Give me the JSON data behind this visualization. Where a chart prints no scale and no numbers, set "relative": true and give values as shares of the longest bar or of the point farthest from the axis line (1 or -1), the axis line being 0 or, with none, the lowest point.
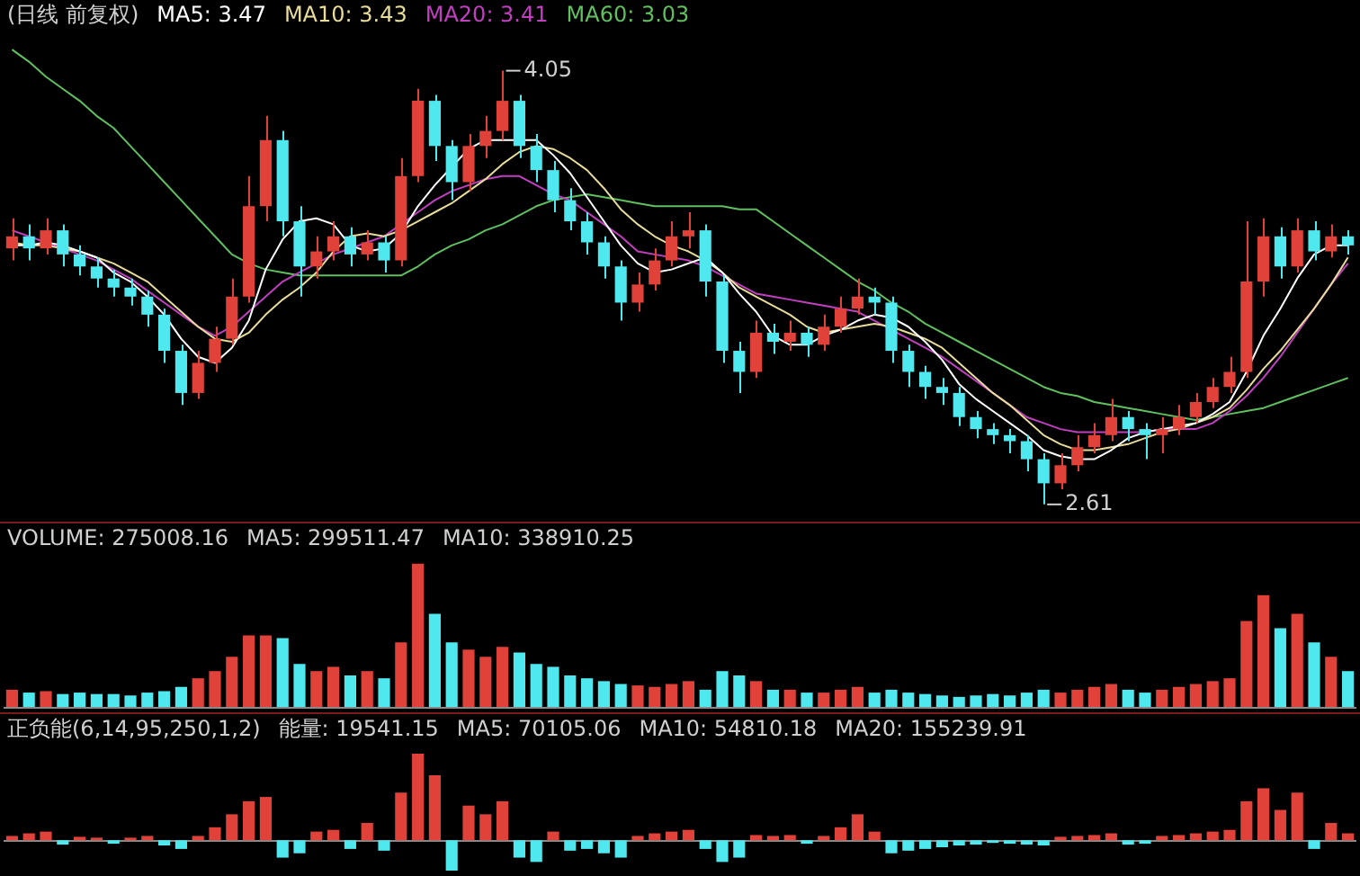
{
  "chart_data": [
    {
      "type": "candlestick",
      "title": "(日线 前复权)",
      "legend": "top left",
      "categories": [
        null,
        null,
        null,
        null,
        null,
        null,
        null,
        null,
        null,
        null,
        null,
        null,
        null,
        null,
        null,
        null,
        null,
        null,
        null,
        null,
        null,
        null,
        null,
        null,
        null,
        null,
        null,
        null,
        null,
        null,
        null,
        null,
        null,
        null,
        null,
        null,
        null,
        null,
        null,
        null,
        null,
        null,
        null,
        null,
        null,
        null,
        null,
        null,
        null,
        null,
        null,
        null,
        null,
        null,
        null,
        null,
        null,
        null,
        null,
        null,
        null,
        null,
        null,
        null,
        null,
        null,
        null,
        null,
        null,
        null,
        null,
        null,
        null,
        null,
        null,
        null,
        null,
        null,
        null,
        null
      ],
      "ohlc": [
        [
          3.46,
          3.56,
          3.42,
          3.5
        ],
        [
          3.5,
          3.54,
          3.42,
          3.46
        ],
        [
          3.46,
          3.56,
          3.44,
          3.52
        ],
        [
          3.52,
          3.54,
          3.4,
          3.44
        ],
        [
          3.44,
          3.47,
          3.37,
          3.4
        ],
        [
          3.4,
          3.43,
          3.33,
          3.36
        ],
        [
          3.36,
          3.39,
          3.3,
          3.33
        ],
        [
          3.33,
          3.36,
          3.27,
          3.3
        ],
        [
          3.3,
          3.32,
          3.2,
          3.24
        ],
        [
          3.24,
          3.26,
          3.08,
          3.12
        ],
        [
          3.12,
          3.14,
          2.94,
          2.98
        ],
        [
          2.98,
          3.12,
          2.96,
          3.08
        ],
        [
          3.08,
          3.2,
          3.05,
          3.16
        ],
        [
          3.16,
          3.36,
          3.14,
          3.3
        ],
        [
          3.3,
          3.7,
          3.28,
          3.6
        ],
        [
          3.6,
          3.9,
          3.55,
          3.82
        ],
        [
          3.82,
          3.85,
          3.5,
          3.55
        ],
        [
          3.55,
          3.6,
          3.3,
          3.4
        ],
        [
          3.4,
          3.5,
          3.36,
          3.45
        ],
        [
          3.45,
          3.55,
          3.42,
          3.5
        ],
        [
          3.5,
          3.53,
          3.4,
          3.44
        ],
        [
          3.44,
          3.52,
          3.42,
          3.48
        ],
        [
          3.48,
          3.5,
          3.38,
          3.42
        ],
        [
          3.42,
          3.76,
          3.4,
          3.7
        ],
        [
          3.7,
          3.99,
          3.68,
          3.95
        ],
        [
          3.95,
          3.97,
          3.75,
          3.8
        ],
        [
          3.8,
          3.82,
          3.62,
          3.68
        ],
        [
          3.68,
          3.84,
          3.65,
          3.8
        ],
        [
          3.8,
          3.9,
          3.76,
          3.85
        ],
        [
          3.85,
          4.05,
          3.82,
          3.95
        ],
        [
          3.95,
          3.97,
          3.76,
          3.8
        ],
        [
          3.8,
          3.84,
          3.68,
          3.72
        ],
        [
          3.72,
          3.75,
          3.58,
          3.62
        ],
        [
          3.62,
          3.66,
          3.52,
          3.55
        ],
        [
          3.55,
          3.58,
          3.44,
          3.48
        ],
        [
          3.48,
          3.5,
          3.36,
          3.4
        ],
        [
          3.4,
          3.42,
          3.22,
          3.28
        ],
        [
          3.28,
          3.38,
          3.25,
          3.34
        ],
        [
          3.34,
          3.46,
          3.32,
          3.42
        ],
        [
          3.42,
          3.55,
          3.4,
          3.5
        ],
        [
          3.5,
          3.58,
          3.46,
          3.52
        ],
        [
          3.52,
          3.54,
          3.3,
          3.35
        ],
        [
          3.35,
          3.37,
          3.08,
          3.12
        ],
        [
          3.12,
          3.15,
          2.98,
          3.05
        ],
        [
          3.05,
          3.22,
          3.03,
          3.18
        ],
        [
          3.18,
          3.21,
          3.11,
          3.15
        ],
        [
          3.15,
          3.22,
          3.12,
          3.18
        ],
        [
          3.18,
          3.2,
          3.1,
          3.14
        ],
        [
          3.14,
          3.24,
          3.12,
          3.2
        ],
        [
          3.2,
          3.3,
          3.18,
          3.26
        ],
        [
          3.26,
          3.36,
          3.24,
          3.3
        ],
        [
          3.3,
          3.33,
          3.24,
          3.28
        ],
        [
          3.28,
          3.3,
          3.08,
          3.12
        ],
        [
          3.12,
          3.14,
          3.0,
          3.05
        ],
        [
          3.05,
          3.07,
          2.96,
          3.0
        ],
        [
          3.0,
          3.03,
          2.94,
          2.98
        ],
        [
          2.98,
          3.0,
          2.87,
          2.9
        ],
        [
          2.9,
          2.92,
          2.83,
          2.86
        ],
        [
          2.86,
          2.88,
          2.81,
          2.84
        ],
        [
          2.84,
          2.86,
          2.78,
          2.82
        ],
        [
          2.82,
          2.84,
          2.72,
          2.76
        ],
        [
          2.76,
          2.78,
          2.61,
          2.68
        ],
        [
          2.68,
          2.78,
          2.66,
          2.74
        ],
        [
          2.74,
          2.84,
          2.72,
          2.8
        ],
        [
          2.8,
          2.88,
          2.78,
          2.84
        ],
        [
          2.84,
          2.96,
          2.82,
          2.9
        ],
        [
          2.9,
          2.92,
          2.82,
          2.86
        ],
        [
          2.86,
          2.88,
          2.76,
          2.84
        ],
        [
          2.84,
          2.9,
          2.78,
          2.86
        ],
        [
          2.86,
          2.94,
          2.84,
          2.9
        ],
        [
          2.9,
          2.98,
          2.88,
          2.95
        ],
        [
          2.95,
          3.03,
          2.93,
          3.0
        ],
        [
          3.0,
          3.1,
          2.98,
          3.05
        ],
        [
          3.05,
          3.55,
          3.03,
          3.35
        ],
        [
          3.35,
          3.56,
          3.3,
          3.5
        ],
        [
          3.5,
          3.53,
          3.36,
          3.4
        ],
        [
          3.4,
          3.56,
          3.38,
          3.52
        ],
        [
          3.52,
          3.55,
          3.42,
          3.45
        ],
        [
          3.45,
          3.54,
          3.43,
          3.5
        ],
        [
          3.5,
          3.52,
          3.44,
          3.47
        ]
      ],
      "colors": [
        "#e0423a",
        "#4ee8ee",
        "#e0423a",
        "#4ee8ee",
        "#4ee8ee",
        "#4ee8ee",
        "#4ee8ee",
        "#4ee8ee",
        "#4ee8ee",
        "#4ee8ee",
        "#4ee8ee",
        "#e0423a",
        "#e0423a",
        "#e0423a",
        "#e0423a",
        "#e0423a",
        "#4ee8ee",
        "#4ee8ee",
        "#e0423a",
        "#e0423a",
        "#4ee8ee",
        "#e0423a",
        "#4ee8ee",
        "#e0423a",
        "#e0423a",
        "#4ee8ee",
        "#4ee8ee",
        "#e0423a",
        "#e0423a",
        "#e0423a",
        "#4ee8ee",
        "#4ee8ee",
        "#4ee8ee",
        "#4ee8ee",
        "#4ee8ee",
        "#4ee8ee",
        "#4ee8ee",
        "#e0423a",
        "#e0423a",
        "#e0423a",
        "#e0423a",
        "#4ee8ee",
        "#4ee8ee",
        "#4ee8ee",
        "#e0423a",
        "#4ee8ee",
        "#e0423a",
        "#4ee8ee",
        "#e0423a",
        "#e0423a",
        "#e0423a",
        "#4ee8ee",
        "#4ee8ee",
        "#4ee8ee",
        "#4ee8ee",
        "#4ee8ee",
        "#4ee8ee",
        "#4ee8ee",
        "#4ee8ee",
        "#4ee8ee",
        "#4ee8ee",
        "#4ee8ee",
        "#e0423a",
        "#e0423a",
        "#e0423a",
        "#e0423a",
        "#4ee8ee",
        "#4ee8ee",
        "#e0423a",
        "#e0423a",
        "#e0423a",
        "#e0423a",
        "#e0423a",
        "#e0423a",
        "#e0423a",
        "#4ee8ee",
        "#e0423a",
        "#4ee8ee",
        "#e0423a",
        "#4ee8ee"
      ],
      "series": [
        {
          "type": "line",
          "name": "MA5: 3.47",
          "color": "#ffffff",
          "values": [
            3.47,
            3.47,
            3.48,
            3.47,
            3.45,
            3.43,
            3.38,
            3.35,
            3.3,
            3.24,
            3.16,
            3.1,
            3.08,
            3.13,
            3.22,
            3.39,
            3.49,
            3.55,
            3.56,
            3.54,
            3.47,
            3.45,
            3.46,
            3.51,
            3.6,
            3.67,
            3.73,
            3.79,
            3.82,
            3.82,
            3.82,
            3.82,
            3.77,
            3.71,
            3.63,
            3.55,
            3.47,
            3.41,
            3.38,
            3.39,
            3.41,
            3.43,
            3.38,
            3.31,
            3.25,
            3.17,
            3.14,
            3.14,
            3.17,
            3.19,
            3.22,
            3.24,
            3.23,
            3.2,
            3.15,
            3.09,
            3.01,
            2.96,
            2.92,
            2.88,
            2.84,
            2.79,
            2.77,
            2.76,
            2.76,
            2.79,
            2.83,
            2.85,
            2.86,
            2.87,
            2.88,
            2.91,
            2.95,
            3.05,
            3.17,
            3.26,
            3.36,
            3.44,
            3.47,
            3.47
          ]
        },
        {
          "type": "line",
          "name": "MA10: 3.43",
          "color": "#e8dc9a",
          "values": [
            3.48,
            3.47,
            3.47,
            3.46,
            3.45,
            3.43,
            3.41,
            3.38,
            3.35,
            3.3,
            3.25,
            3.2,
            3.16,
            3.15,
            3.18,
            3.24,
            3.29,
            3.33,
            3.38,
            3.45,
            3.5,
            3.51,
            3.5,
            3.52,
            3.55,
            3.58,
            3.61,
            3.65,
            3.69,
            3.74,
            3.78,
            3.8,
            3.79,
            3.76,
            3.72,
            3.66,
            3.59,
            3.54,
            3.5,
            3.47,
            3.45,
            3.42,
            3.38,
            3.33,
            3.3,
            3.27,
            3.24,
            3.2,
            3.18,
            3.19,
            3.2,
            3.21,
            3.2,
            3.18,
            3.16,
            3.13,
            3.08,
            3.03,
            2.98,
            2.94,
            2.89,
            2.84,
            2.81,
            2.79,
            2.79,
            2.8,
            2.81,
            2.83,
            2.85,
            2.86,
            2.88,
            2.9,
            2.93,
            2.99,
            3.06,
            3.12,
            3.19,
            3.26,
            3.34,
            3.43
          ]
        },
        {
          "type": "line",
          "name": "MA20: 3.41",
          "color": "#c040c0",
          "values": [
            3.52,
            3.5,
            3.48,
            3.46,
            3.44,
            3.42,
            3.39,
            3.36,
            3.32,
            3.28,
            3.24,
            3.2,
            3.17,
            3.2,
            3.25,
            3.3,
            3.35,
            3.38,
            3.41,
            3.44,
            3.46,
            3.48,
            3.5,
            3.54,
            3.58,
            3.62,
            3.65,
            3.67,
            3.69,
            3.7,
            3.7,
            3.67,
            3.64,
            3.62,
            3.58,
            3.54,
            3.5,
            3.45,
            3.44,
            3.43,
            3.42,
            3.4,
            3.37,
            3.34,
            3.31,
            3.3,
            3.29,
            3.28,
            3.27,
            3.26,
            3.25,
            3.22,
            3.19,
            3.16,
            3.13,
            3.1,
            3.06,
            3.02,
            2.98,
            2.94,
            2.9,
            2.88,
            2.86,
            2.85,
            2.85,
            2.85,
            2.85,
            2.85,
            2.86,
            2.86,
            2.86,
            2.88,
            2.92,
            2.97,
            3.03,
            3.1,
            3.18,
            3.26,
            3.34,
            3.41
          ]
        },
        {
          "type": "line",
          "name": "MA60: 3.03",
          "color": "#60c060",
          "values": [
            4.12,
            4.08,
            4.03,
            3.99,
            3.95,
            3.9,
            3.86,
            3.8,
            3.74,
            3.68,
            3.62,
            3.56,
            3.5,
            3.44,
            3.41,
            3.39,
            3.38,
            3.37,
            3.37,
            3.37,
            3.37,
            3.37,
            3.37,
            3.37,
            3.4,
            3.44,
            3.47,
            3.49,
            3.52,
            3.54,
            3.57,
            3.6,
            3.62,
            3.63,
            3.64,
            3.63,
            3.62,
            3.61,
            3.6,
            3.6,
            3.6,
            3.6,
            3.6,
            3.59,
            3.59,
            3.55,
            3.51,
            3.47,
            3.43,
            3.39,
            3.35,
            3.32,
            3.28,
            3.25,
            3.21,
            3.18,
            3.15,
            3.12,
            3.09,
            3.06,
            3.03,
            3.0,
            2.98,
            2.97,
            2.95,
            2.94,
            2.93,
            2.92,
            2.91,
            2.9,
            2.89,
            2.9,
            2.91,
            2.92,
            2.93,
            2.95,
            2.97,
            2.99,
            3.01,
            3.03
          ]
        }
      ],
      "annotations": [
        "4.05",
        "2.61"
      ]
    },
    {
      "type": "bar",
      "relative": true,
      "title": "VOLUME: 275008.16",
      "annotations": [
        "MA5: 299511.47",
        "MA10: 338910.25"
      ],
      "categories": [
        null,
        null,
        null,
        null,
        null,
        null,
        null,
        null,
        null,
        null,
        null,
        null,
        null,
        null,
        null,
        null,
        null,
        null,
        null,
        null,
        null,
        null,
        null,
        null,
        null,
        null,
        null,
        null,
        null,
        null,
        null,
        null,
        null,
        null,
        null,
        null,
        null,
        null,
        null,
        null,
        null,
        null,
        null,
        null,
        null,
        null,
        null,
        null,
        null,
        null,
        null,
        null,
        null,
        null,
        null,
        null,
        null,
        null,
        null,
        null,
        null,
        null,
        null,
        null,
        null,
        null,
        null,
        null,
        null,
        null,
        null,
        null,
        null,
        null,
        null,
        null,
        null,
        null,
        null,
        null
      ],
      "values": [
        0.12,
        0.1,
        0.11,
        0.09,
        0.1,
        0.09,
        0.09,
        0.08,
        0.1,
        0.11,
        0.14,
        0.2,
        0.25,
        0.35,
        0.5,
        0.5,
        0.48,
        0.3,
        0.25,
        0.28,
        0.22,
        0.25,
        0.2,
        0.45,
        1,
        0.65,
        0.45,
        0.4,
        0.35,
        0.42,
        0.38,
        0.3,
        0.28,
        0.22,
        0.2,
        0.18,
        0.16,
        0.15,
        0.14,
        0.16,
        0.18,
        0.12,
        0.25,
        0.22,
        0.18,
        0.12,
        0.12,
        0.1,
        0.1,
        0.12,
        0.14,
        0.1,
        0.12,
        0.1,
        0.09,
        0.08,
        0.07,
        0.08,
        0.09,
        0.08,
        0.1,
        0.12,
        0.1,
        0.12,
        0.14,
        0.16,
        0.12,
        0.1,
        0.12,
        0.14,
        0.16,
        0.18,
        0.2,
        0.6,
        0.78,
        0.55,
        0.65,
        0.45,
        0.35,
        0.25
      ],
      "colors": [
        "#e0423a",
        "#4ee8ee",
        "#e0423a",
        "#4ee8ee",
        "#4ee8ee",
        "#4ee8ee",
        "#4ee8ee",
        "#4ee8ee",
        "#4ee8ee",
        "#4ee8ee",
        "#4ee8ee",
        "#e0423a",
        "#e0423a",
        "#e0423a",
        "#e0423a",
        "#e0423a",
        "#4ee8ee",
        "#4ee8ee",
        "#e0423a",
        "#e0423a",
        "#4ee8ee",
        "#e0423a",
        "#4ee8ee",
        "#e0423a",
        "#e0423a",
        "#4ee8ee",
        "#4ee8ee",
        "#e0423a",
        "#e0423a",
        "#e0423a",
        "#4ee8ee",
        "#4ee8ee",
        "#4ee8ee",
        "#4ee8ee",
        "#4ee8ee",
        "#4ee8ee",
        "#4ee8ee",
        "#e0423a",
        "#e0423a",
        "#e0423a",
        "#e0423a",
        "#4ee8ee",
        "#4ee8ee",
        "#4ee8ee",
        "#e0423a",
        "#4ee8ee",
        "#e0423a",
        "#4ee8ee",
        "#e0423a",
        "#e0423a",
        "#e0423a",
        "#4ee8ee",
        "#4ee8ee",
        "#4ee8ee",
        "#4ee8ee",
        "#4ee8ee",
        "#4ee8ee",
        "#4ee8ee",
        "#4ee8ee",
        "#4ee8ee",
        "#4ee8ee",
        "#4ee8ee",
        "#e0423a",
        "#e0423a",
        "#e0423a",
        "#e0423a",
        "#4ee8ee",
        "#4ee8ee",
        "#e0423a",
        "#e0423a",
        "#e0423a",
        "#e0423a",
        "#e0423a",
        "#e0423a",
        "#e0423a",
        "#4ee8ee",
        "#e0423a",
        "#4ee8ee",
        "#e0423a",
        "#4ee8ee"
      ]
    },
    {
      "type": "bar",
      "relative": true,
      "title": "正负能(6,14,95,250,1,2)",
      "annotations": [
        "能量: 19541.15",
        "MA5: 70105.06",
        "MA10: 54810.18",
        "MA20: 155239.91"
      ],
      "categories": [
        null,
        null,
        null,
        null,
        null,
        null,
        null,
        null,
        null,
        null,
        null,
        null,
        null,
        null,
        null,
        null,
        null,
        null,
        null,
        null,
        null,
        null,
        null,
        null,
        null,
        null,
        null,
        null,
        null,
        null,
        null,
        null,
        null,
        null,
        null,
        null,
        null,
        null,
        null,
        null,
        null,
        null,
        null,
        null,
        null,
        null,
        null,
        null,
        null,
        null,
        null,
        null,
        null,
        null,
        null,
        null,
        null,
        null,
        null,
        null,
        null,
        null,
        null,
        null,
        null,
        null,
        null,
        null,
        null,
        null,
        null,
        null,
        null,
        null,
        null,
        null,
        null,
        null,
        null,
        null
      ],
      "values": [
        0.05,
        0.08,
        0.1,
        -0.05,
        0.04,
        0.03,
        -0.04,
        0.03,
        0.05,
        -0.06,
        -0.1,
        0.05,
        0.15,
        0.3,
        0.45,
        0.5,
        -0.2,
        -0.15,
        0.1,
        0.12,
        -0.1,
        0.2,
        -0.12,
        0.55,
        1,
        0.75,
        -0.35,
        0.4,
        0.3,
        0.45,
        -0.2,
        -0.25,
        0.1,
        -0.12,
        -0.1,
        -0.15,
        -0.2,
        0.05,
        0.08,
        0.1,
        0.12,
        -0.1,
        -0.25,
        -0.2,
        0.06,
        0.05,
        0.06,
        -0.04,
        0.05,
        0.15,
        0.3,
        0.1,
        -0.15,
        -0.12,
        -0.1,
        -0.08,
        -0.06,
        -0.05,
        -0.03,
        -0.04,
        -0.05,
        -0.06,
        0.04,
        0.05,
        0.06,
        0.08,
        -0.05,
        -0.04,
        0.05,
        0.06,
        0.08,
        0.1,
        0.12,
        0.45,
        0.6,
        0.35,
        0.55,
        -0.1,
        0.2,
        0.08
      ],
      "colors": [
        "#e0423a",
        "#e0423a",
        "#e0423a",
        "#4ee8ee",
        "#e0423a",
        "#e0423a",
        "#4ee8ee",
        "#e0423a",
        "#e0423a",
        "#4ee8ee",
        "#4ee8ee",
        "#e0423a",
        "#e0423a",
        "#e0423a",
        "#e0423a",
        "#e0423a",
        "#4ee8ee",
        "#4ee8ee",
        "#e0423a",
        "#e0423a",
        "#4ee8ee",
        "#e0423a",
        "#4ee8ee",
        "#e0423a",
        "#e0423a",
        "#e0423a",
        "#4ee8ee",
        "#e0423a",
        "#e0423a",
        "#e0423a",
        "#4ee8ee",
        "#4ee8ee",
        "#e0423a",
        "#4ee8ee",
        "#4ee8ee",
        "#4ee8ee",
        "#4ee8ee",
        "#e0423a",
        "#e0423a",
        "#e0423a",
        "#e0423a",
        "#4ee8ee",
        "#4ee8ee",
        "#4ee8ee",
        "#e0423a",
        "#e0423a",
        "#e0423a",
        "#4ee8ee",
        "#e0423a",
        "#e0423a",
        "#e0423a",
        "#e0423a",
        "#4ee8ee",
        "#4ee8ee",
        "#4ee8ee",
        "#4ee8ee",
        "#4ee8ee",
        "#4ee8ee",
        "#4ee8ee",
        "#4ee8ee",
        "#4ee8ee",
        "#4ee8ee",
        "#e0423a",
        "#e0423a",
        "#e0423a",
        "#e0423a",
        "#4ee8ee",
        "#4ee8ee",
        "#e0423a",
        "#e0423a",
        "#e0423a",
        "#e0423a",
        "#e0423a",
        "#e0423a",
        "#e0423a",
        "#e0423a",
        "#e0423a",
        "#4ee8ee",
        "#e0423a",
        "#e0423a"
      ]
    }
  ]
}
